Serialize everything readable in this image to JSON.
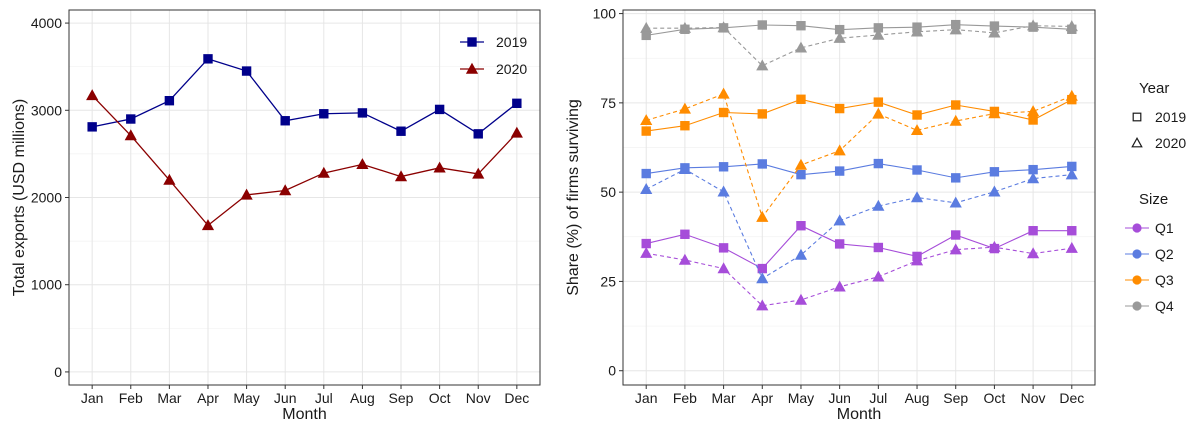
{
  "chart_data": [
    {
      "type": "line",
      "xlabel": "Month",
      "ylabel": "Total exports (USD millions)",
      "categories": [
        "Jan",
        "Feb",
        "Mar",
        "Apr",
        "May",
        "Jun",
        "Jul",
        "Aug",
        "Sep",
        "Oct",
        "Nov",
        "Dec"
      ],
      "ylim": [
        -150,
        4150
      ],
      "yticks": [
        0,
        1000,
        2000,
        3000,
        4000
      ],
      "grid": true,
      "legend_position": "top-right",
      "series": [
        {
          "name": "2019",
          "color": "#00008b",
          "marker": "square",
          "values": [
            2810,
            2900,
            3110,
            3590,
            3450,
            2880,
            2960,
            2970,
            2760,
            3010,
            2730,
            3080
          ]
        },
        {
          "name": "2020",
          "color": "#8b0000",
          "marker": "triangle",
          "values": [
            3170,
            2710,
            2200,
            1680,
            2030,
            2080,
            2280,
            2380,
            2240,
            2340,
            2270,
            2740
          ]
        }
      ]
    },
    {
      "type": "line",
      "xlabel": "Month",
      "ylabel": "Share (%) of firms surviving",
      "categories": [
        "Jan",
        "Feb",
        "Mar",
        "Apr",
        "May",
        "Jun",
        "Jul",
        "Aug",
        "Sep",
        "Oct",
        "Nov",
        "Dec"
      ],
      "ylim": [
        -4,
        101
      ],
      "yticks": [
        0,
        25,
        50,
        75,
        100
      ],
      "grid": true,
      "legend_position": "right",
      "legend_year_title": "Year",
      "legend_size_title": "Size",
      "years": [
        {
          "name": "2019",
          "marker": "square",
          "dash": "solid"
        },
        {
          "name": "2020",
          "marker": "triangle",
          "dash": "dashed"
        }
      ],
      "series": [
        {
          "size": "Q1",
          "color": "#a64dd9",
          "values_2019": [
            35.6,
            38.2,
            34.4,
            28.6,
            40.6,
            35.5,
            34.5,
            32.0,
            38.0,
            34.2,
            39.2,
            39.2
          ],
          "values_2020": [
            32.9,
            31.0,
            28.6,
            18.2,
            19.8,
            23.5,
            26.3,
            30.8,
            33.9,
            34.6,
            32.8,
            34.3
          ]
        },
        {
          "size": "Q2",
          "color": "#5b7ce0",
          "values_2019": [
            55.2,
            56.8,
            57.1,
            57.9,
            54.9,
            55.9,
            58.0,
            56.2,
            54.0,
            55.7,
            56.3,
            57.2
          ],
          "values_2020": [
            50.8,
            56.4,
            50.1,
            25.8,
            32.4,
            42.0,
            46.1,
            48.5,
            47.0,
            50.1,
            53.8,
            54.9
          ]
        },
        {
          "size": "Q3",
          "color": "#ff8c00",
          "values_2019": [
            67.1,
            68.6,
            72.3,
            71.9,
            76.0,
            73.4,
            75.2,
            71.6,
            74.4,
            72.6,
            70.2,
            75.9
          ],
          "values_2020": [
            70.1,
            73.3,
            77.5,
            43.0,
            57.6,
            61.6,
            71.9,
            67.3,
            69.9,
            72.0,
            72.6,
            76.9
          ]
        },
        {
          "size": "Q4",
          "color": "#999999",
          "values_2019": [
            93.9,
            95.6,
            96.0,
            96.8,
            96.6,
            95.5,
            96.0,
            96.2,
            96.9,
            96.5,
            96.2,
            95.6
          ],
          "values_2020": [
            95.9,
            95.9,
            96.1,
            85.4,
            90.4,
            93.1,
            94.0,
            94.9,
            95.5,
            94.6,
            96.6,
            96.4
          ]
        }
      ]
    }
  ]
}
